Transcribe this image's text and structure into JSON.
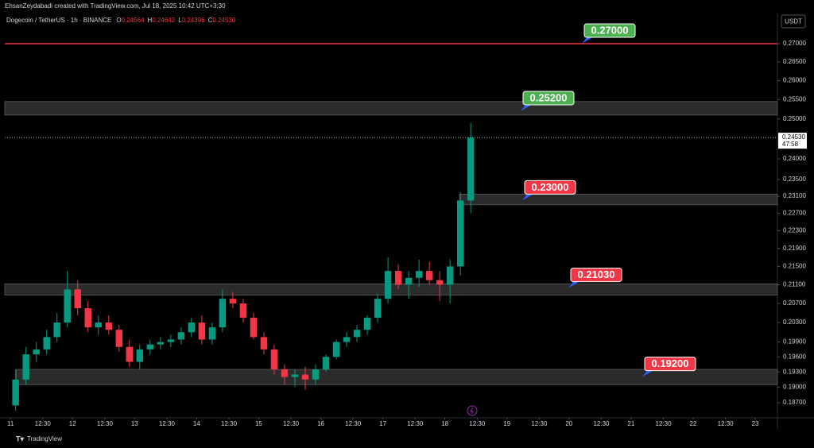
{
  "header": {
    "author_line": "EhsanZeydabadi created with TradingView.com, Jul 18, 2025 10:42 UTC+3:30"
  },
  "chart_data": {
    "type": "candlestick",
    "symbol": "Dogecoin / TetherUS · 1h · BINANCE",
    "ohlc_legend": [
      {
        "key": "O",
        "value": 0.24564
      },
      {
        "key": "H",
        "value": 0.24642
      },
      {
        "key": "L",
        "value": 0.24396
      },
      {
        "key": "C",
        "value": 0.2453,
        "label": "0.24530"
      }
    ],
    "currency": "USDT",
    "x": [
      0,
      4,
      8,
      12,
      16,
      20,
      24,
      28,
      32,
      36,
      40,
      44,
      48,
      52,
      56,
      60,
      64,
      68,
      72,
      76,
      80,
      84,
      88,
      92,
      96,
      100,
      104,
      108,
      112,
      116,
      120,
      124,
      128,
      132,
      136,
      140,
      144,
      148,
      152,
      156,
      160,
      164,
      168,
      172,
      176
    ],
    "open": [
      0.1865,
      0.1915,
      0.1965,
      0.1975,
      0.2,
      0.203,
      0.21,
      0.206,
      0.202,
      0.203,
      0.2015,
      0.198,
      0.195,
      0.1975,
      0.1985,
      0.199,
      0.1995,
      0.201,
      0.203,
      0.1995,
      0.202,
      0.208,
      0.207,
      0.204,
      0.2,
      0.1975,
      0.1935,
      0.192,
      0.1925,
      0.1915,
      0.1935,
      0.196,
      0.199,
      0.2,
      0.2015,
      0.204,
      0.208,
      0.214,
      0.211,
      0.2125,
      0.214,
      0.212,
      0.211,
      0.215,
      0.23
    ],
    "high": [
      0.1935,
      0.198,
      0.199,
      0.2015,
      0.205,
      0.214,
      0.212,
      0.2075,
      0.2045,
      0.2045,
      0.2025,
      0.1995,
      0.1985,
      0.1995,
      0.2,
      0.2005,
      0.202,
      0.204,
      0.2045,
      0.203,
      0.21,
      0.2095,
      0.208,
      0.205,
      0.201,
      0.1985,
      0.1945,
      0.1935,
      0.194,
      0.1945,
      0.1965,
      0.1995,
      0.201,
      0.2025,
      0.2045,
      0.209,
      0.217,
      0.2155,
      0.214,
      0.2165,
      0.216,
      0.214,
      0.2165,
      0.232,
      0.249
    ],
    "low": [
      0.1855,
      0.1905,
      0.195,
      0.1965,
      0.199,
      0.202,
      0.2045,
      0.201,
      0.2005,
      0.2005,
      0.197,
      0.194,
      0.1935,
      0.1965,
      0.1975,
      0.198,
      0.1985,
      0.2,
      0.1985,
      0.1985,
      0.201,
      0.206,
      0.203,
      0.1995,
      0.1965,
      0.1925,
      0.1905,
      0.19,
      0.1895,
      0.1905,
      0.193,
      0.1955,
      0.198,
      0.199,
      0.2005,
      0.203,
      0.207,
      0.21,
      0.208,
      0.2105,
      0.211,
      0.2075,
      0.207,
      0.213,
      0.227
    ],
    "close": [
      0.1915,
      0.1965,
      0.1975,
      0.2,
      0.203,
      0.21,
      0.206,
      0.202,
      0.203,
      0.2015,
      0.198,
      0.195,
      0.1975,
      0.1985,
      0.199,
      0.1995,
      0.201,
      0.203,
      0.1995,
      0.202,
      0.208,
      0.207,
      0.204,
      0.2,
      0.1975,
      0.1935,
      0.192,
      0.1925,
      0.1915,
      0.1935,
      0.196,
      0.199,
      0.2,
      0.2015,
      0.204,
      0.208,
      0.214,
      0.211,
      0.2125,
      0.214,
      0.212,
      0.211,
      0.215,
      0.23,
      0.2453
    ],
    "up_color": "#089981",
    "down_color": "#f23645",
    "xlim": [
      -2.2,
      296.6
    ],
    "xticks": [
      {
        "value": 0,
        "label": "11"
      },
      {
        "value": 12.5,
        "label": "12:30"
      },
      {
        "value": 24,
        "label": "12"
      },
      {
        "value": 36.5,
        "label": "12:30"
      },
      {
        "value": 48,
        "label": "13"
      },
      {
        "value": 60.5,
        "label": "12:30"
      },
      {
        "value": 72,
        "label": "14"
      },
      {
        "value": 84.5,
        "label": "12:30"
      },
      {
        "value": 96,
        "label": "15"
      },
      {
        "value": 108.5,
        "label": "12:30"
      },
      {
        "value": 120,
        "label": "16"
      },
      {
        "value": 132.5,
        "label": "12:30"
      },
      {
        "value": 144,
        "label": "17"
      },
      {
        "value": 156.5,
        "label": "12:30"
      },
      {
        "value": 168,
        "label": "18"
      },
      {
        "value": 180.5,
        "label": "12:30"
      },
      {
        "value": 192,
        "label": "19"
      },
      {
        "value": 204.5,
        "label": "12:30"
      },
      {
        "value": 216,
        "label": "20"
      },
      {
        "value": 228.5,
        "label": "12:30"
      },
      {
        "value": 240,
        "label": "21"
      },
      {
        "value": 252.5,
        "label": "12:30"
      },
      {
        "value": 264,
        "label": "22"
      },
      {
        "value": 276.5,
        "label": "12:30"
      },
      {
        "value": 288,
        "label": "23"
      }
    ],
    "ylim": [
      0.1843,
      0.2778
    ],
    "log_scale": true,
    "yticks": [
      {
        "value": 0.27,
        "label": "0.27000"
      },
      {
        "value": 0.265,
        "label": "0.26500"
      },
      {
        "value": 0.26,
        "label": "0.26000"
      },
      {
        "value": 0.255,
        "label": "0.25500"
      },
      {
        "value": 0.25,
        "label": "0.25000"
      },
      {
        "value": 0.24,
        "label": "0.24000"
      },
      {
        "value": 0.235,
        "label": "0.23500"
      },
      {
        "value": 0.231,
        "label": "0.23100"
      },
      {
        "value": 0.227,
        "label": "0.22700"
      },
      {
        "value": 0.223,
        "label": "0.22300"
      },
      {
        "value": 0.219,
        "label": "0.21900"
      },
      {
        "value": 0.215,
        "label": "0.21500"
      },
      {
        "value": 0.211,
        "label": "0.21100"
      },
      {
        "value": 0.207,
        "label": "0.20700"
      },
      {
        "value": 0.203,
        "label": "0.20300"
      },
      {
        "value": 0.199,
        "label": "0.19900"
      },
      {
        "value": 0.196,
        "label": "0.19600"
      },
      {
        "value": 0.193,
        "label": "0.19300"
      },
      {
        "value": 0.19,
        "label": "0.19000"
      },
      {
        "value": 0.187,
        "label": "0.18700"
      }
    ],
    "last_price": {
      "value": 0.2453,
      "label": "0.24530"
    },
    "countdown": "47:58",
    "levels": [
      {
        "value": 0.27,
        "label": "0.27000",
        "color": "#4caf50"
      },
      {
        "value": 0.252,
        "label": "0.25200",
        "color": "#4caf50",
        "zone": [
          0.251,
          0.2545
        ],
        "x_start": -2.2
      },
      {
        "value": 0.23,
        "label": "0.23000",
        "color": "#f23645",
        "zone": [
          0.229,
          0.2315
        ],
        "x_start": 173.7
      },
      {
        "value": 0.2103,
        "label": "0.21030",
        "color": "#f23645",
        "zone": [
          0.2088,
          0.2112
        ],
        "x_start": -2.2
      },
      {
        "value": 0.192,
        "label": "0.19200",
        "color": "#f23645",
        "zone": [
          0.1905,
          0.1935
        ],
        "x_start": 2.2
      }
    ],
    "level_line_color": "#f23645"
  },
  "footer": {
    "brand": "TradingView"
  }
}
